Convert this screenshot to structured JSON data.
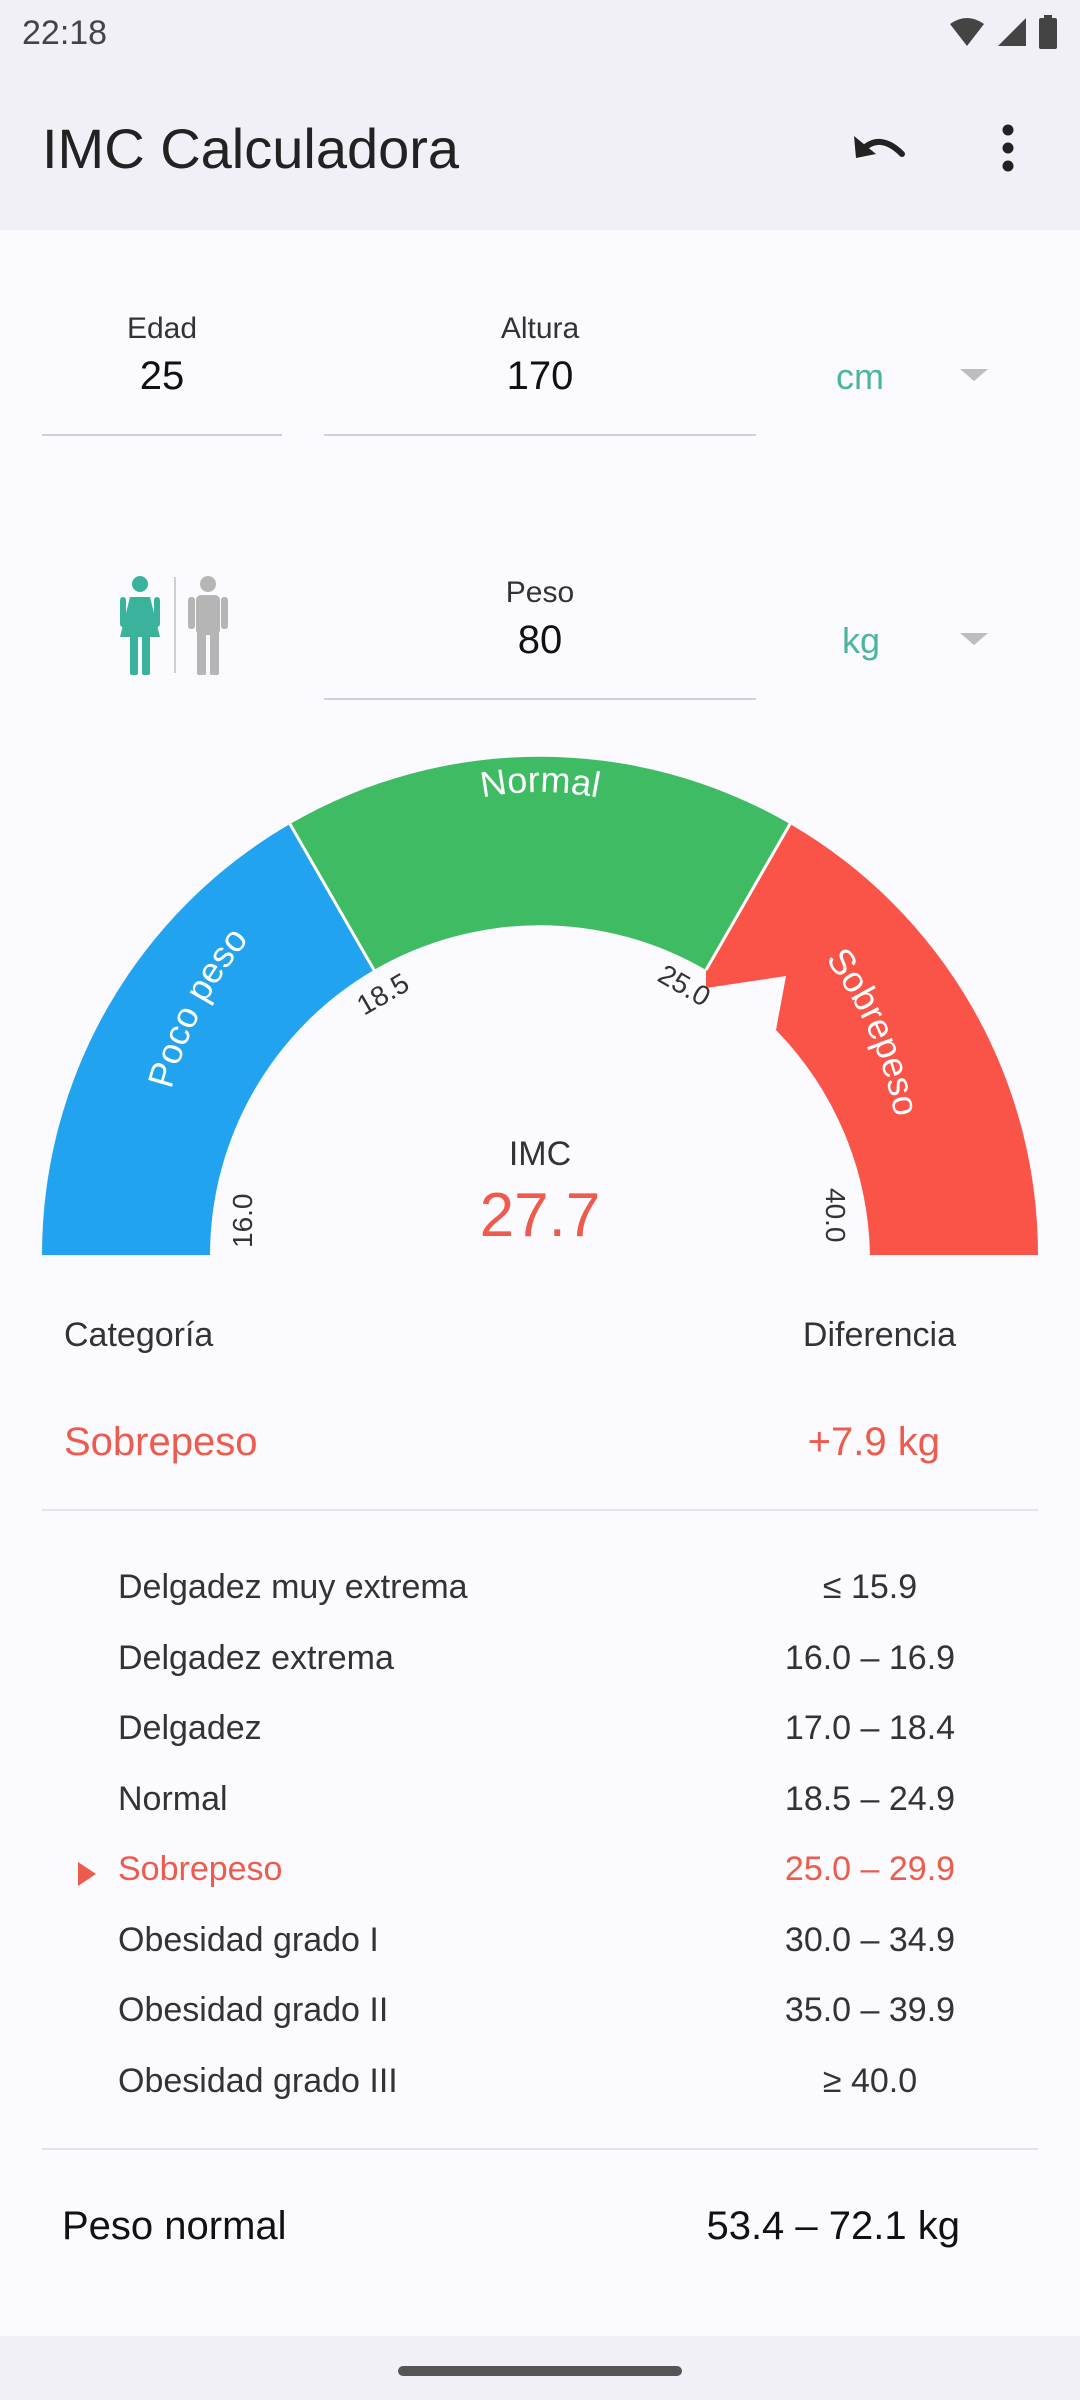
{
  "status": {
    "time": "22:18"
  },
  "appbar": {
    "title": "IMC Calculadora"
  },
  "inputs": {
    "age": {
      "label": "Edad",
      "value": "25"
    },
    "height": {
      "label": "Altura",
      "value": "170",
      "unit": "cm"
    },
    "weight": {
      "label": "Peso",
      "value": "80",
      "unit": "kg"
    }
  },
  "gauge": {
    "segments": {
      "under": "Poco peso",
      "normal": "Normal",
      "over": "Sobrepeso"
    },
    "ticks": {
      "t1": "16.0",
      "t2": "18.5",
      "t3": "25.0",
      "t4": "40.0"
    },
    "label": "IMC",
    "value": "27.7",
    "value_numeric": 27.7,
    "colors": {
      "under": "#22a3f0",
      "normal": "#3fbb63",
      "over": "#fa5449",
      "accent": "#ee5a4c"
    }
  },
  "result": {
    "category_header": "Categoría",
    "difference_header": "Diferencia",
    "category": "Sobrepeso",
    "difference": "+7.9 kg"
  },
  "table": [
    {
      "name": "Delgadez muy extrema",
      "range": "≤ 15.9"
    },
    {
      "name": "Delgadez extrema",
      "range": "16.0 – 16.9"
    },
    {
      "name": "Delgadez",
      "range": "17.0 – 18.4"
    },
    {
      "name": "Normal",
      "range": "18.5 – 24.9"
    },
    {
      "name": "Sobrepeso",
      "range": "25.0 – 29.9"
    },
    {
      "name": "Obesidad grado I",
      "range": "30.0 – 34.9"
    },
    {
      "name": "Obesidad grado II",
      "range": "35.0 – 39.9"
    },
    {
      "name": "Obesidad grado III",
      "range": "≥ 40.0"
    }
  ],
  "active_row_index": 4,
  "normal_weight": {
    "label": "Peso normal",
    "value": "53.4 – 72.1 kg"
  }
}
